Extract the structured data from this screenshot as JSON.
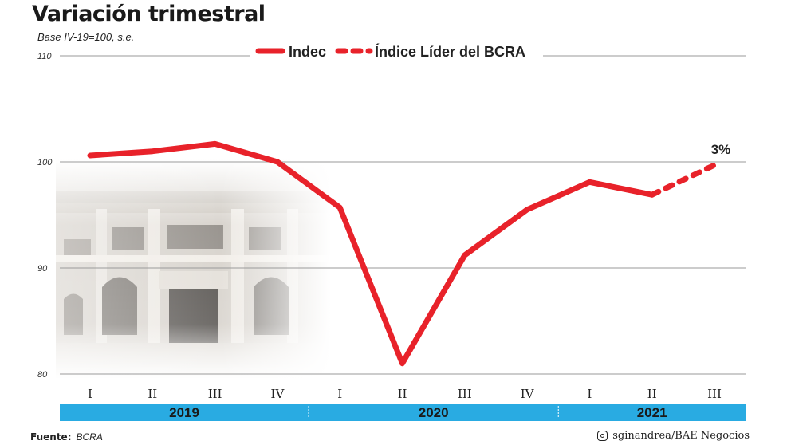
{
  "chart_data": {
    "type": "line",
    "title": "Variación trimestral",
    "subtitle": "Base IV-19=100, s.e.",
    "yticks": [
      80,
      90,
      100,
      110
    ],
    "ylim": [
      80,
      110
    ],
    "grid": true,
    "x": [
      "I",
      "II",
      "III",
      "IV",
      "I",
      "II",
      "III",
      "IV",
      "I",
      "II",
      "III"
    ],
    "years": [
      {
        "label": "2019",
        "start": 0,
        "end": 3
      },
      {
        "label": "2020",
        "start": 4,
        "end": 7
      },
      {
        "label": "2021",
        "start": 8,
        "end": 10
      }
    ],
    "series": [
      {
        "name": "Indec",
        "style": "solid",
        "color": "#e8222a",
        "values": [
          100.6,
          101.0,
          101.7,
          100.0,
          95.7,
          81.0,
          91.2,
          95.5,
          98.1,
          96.9,
          null
        ]
      },
      {
        "name": "Índice Líder del BCRA",
        "style": "dashed",
        "color": "#e8222a",
        "values": [
          null,
          null,
          null,
          null,
          null,
          null,
          null,
          null,
          null,
          96.9,
          99.7
        ]
      }
    ],
    "annotation": {
      "text": "3%",
      "index": 10
    },
    "legend_position": "top-center",
    "year_bar_color": "#29abe2"
  },
  "footer": {
    "source_label": "Fuente:",
    "source_value": "BCRA",
    "credit": "sginandrea/BAE Negocios"
  }
}
